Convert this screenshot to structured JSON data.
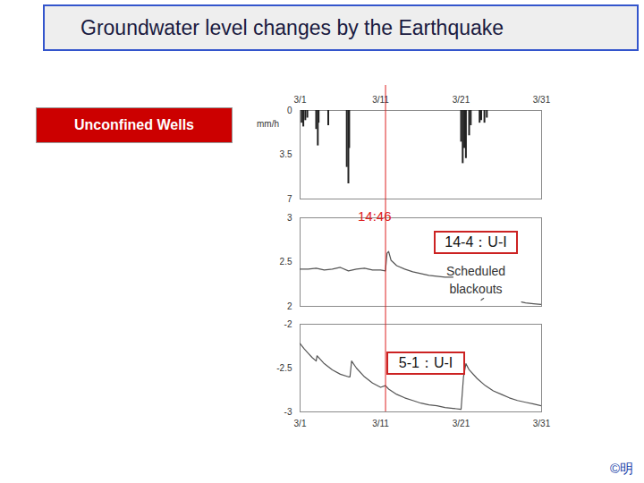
{
  "title": "Groundwater level changes by the Earthquake",
  "side_label": "Unconfined Wells",
  "credit": "©明",
  "event": {
    "x": 11.615,
    "label": "14:46",
    "color": "#dd2222"
  },
  "chart_data": [
    {
      "type": "bar",
      "y_label": "mm/h",
      "color": "#222222",
      "x": [
        1.2,
        1.4,
        1.65,
        1.9,
        3.0,
        3.2,
        3.3,
        4.5,
        6.8,
        7.0,
        7.1,
        21.0,
        21.2,
        21.4,
        21.6,
        22.0,
        22.2,
        23.3,
        23.5,
        23.9,
        24.2
      ],
      "values": [
        1.0,
        1.3,
        0.8,
        0.6,
        1.5,
        2.8,
        1.0,
        1.2,
        4.5,
        5.8,
        3.0,
        2.5,
        4.2,
        3.0,
        3.8,
        2.0,
        1.2,
        1.0,
        0.8,
        1.0,
        0.6
      ],
      "xlim": [
        1,
        31
      ],
      "xticks": [
        {
          "value": 1,
          "label": "3/1"
        },
        {
          "value": 11,
          "label": "3/11"
        },
        {
          "value": 21,
          "label": "3/21"
        },
        {
          "value": 31,
          "label": "3/31"
        }
      ],
      "ylim": [
        7,
        0
      ],
      "yticks": [
        0,
        3.5,
        7
      ]
    },
    {
      "type": "line",
      "title": "14-4：U-I",
      "annotation": "Scheduled blackouts",
      "color": "#555555",
      "tick_labels": "y",
      "x": [
        1,
        2,
        3,
        4,
        5,
        6,
        7,
        8,
        9,
        10,
        11,
        11.6,
        11.8,
        12,
        12.3,
        13,
        14,
        15,
        16,
        17,
        18,
        19,
        20,
        21,
        23.5,
        23.8,
        25,
        28.5,
        29,
        30,
        31
      ],
      "values": [
        2.42,
        2.42,
        2.43,
        2.41,
        2.42,
        2.44,
        2.4,
        2.42,
        2.43,
        2.41,
        2.41,
        2.4,
        2.6,
        2.62,
        2.52,
        2.46,
        2.42,
        2.39,
        2.37,
        2.35,
        2.34,
        2.33,
        2.33,
        null,
        2.07,
        2.09,
        null,
        2.05,
        2.04,
        2.03,
        2.02
      ],
      "xlim": [
        1,
        31
      ],
      "xticks": [
        {
          "value": 1,
          "label": "3/1"
        },
        {
          "value": 11,
          "label": "3/11"
        },
        {
          "value": 21,
          "label": "3/21"
        },
        {
          "value": 31,
          "label": "3/31"
        }
      ],
      "ylim": [
        2,
        3
      ],
      "yticks": [
        3,
        2.5,
        2
      ]
    },
    {
      "type": "line",
      "title": "5-1：U-I",
      "color": "#555555",
      "x": [
        1,
        1.5,
        2,
        2.5,
        3.0,
        3.1,
        3.5,
        4,
        5,
        6,
        7,
        7.2,
        7.4,
        8,
        9,
        10,
        11,
        11.6,
        12,
        13,
        14,
        15,
        16,
        17,
        18,
        19,
        20,
        21,
        21.3,
        21.6,
        22,
        23,
        24,
        25,
        26,
        27,
        28,
        29,
        30,
        31
      ],
      "values": [
        -2.22,
        -2.28,
        -2.33,
        -2.38,
        -2.42,
        -2.36,
        -2.4,
        -2.45,
        -2.52,
        -2.57,
        -2.6,
        -2.6,
        -2.42,
        -2.5,
        -2.6,
        -2.67,
        -2.72,
        -2.7,
        -2.74,
        -2.8,
        -2.84,
        -2.87,
        -2.9,
        -2.92,
        -2.93,
        -2.95,
        -2.96,
        -2.97,
        -2.6,
        -2.45,
        -2.52,
        -2.62,
        -2.7,
        -2.76,
        -2.8,
        -2.84,
        -2.87,
        -2.89,
        -2.91,
        -2.93
      ],
      "xlim": [
        1,
        31
      ],
      "xticks": [
        {
          "value": 1,
          "label": "3/1"
        },
        {
          "value": 11,
          "label": "3/11"
        },
        {
          "value": 21,
          "label": "3/21"
        },
        {
          "value": 31,
          "label": "3/31"
        }
      ],
      "ylim": [
        -3,
        -2
      ],
      "yticks": [
        -2,
        -2.5,
        -3
      ]
    }
  ]
}
